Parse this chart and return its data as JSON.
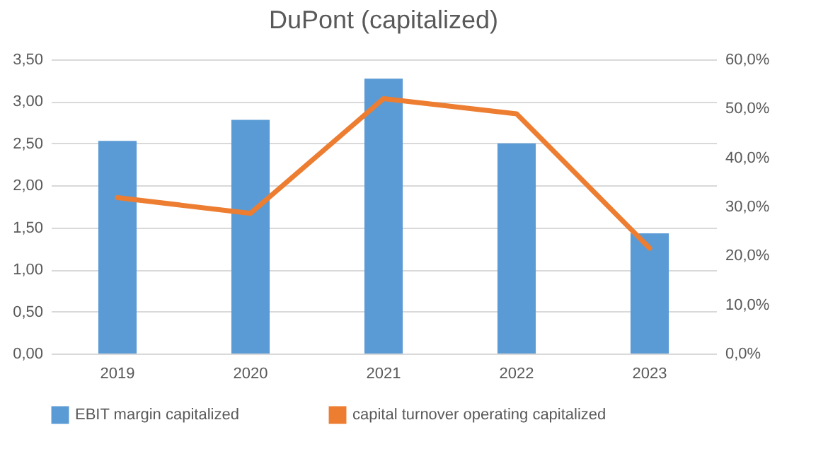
{
  "chart_data": {
    "type": "bar",
    "title": "DuPont (capitalized)",
    "categories": [
      "2019",
      "2020",
      "2021",
      "2022",
      "2023"
    ],
    "series": [
      {
        "name": "EBIT margin capitalized",
        "color": "#5b9bd5",
        "values": [
          2.53,
          2.78,
          3.27,
          2.5,
          1.43
        ]
      },
      {
        "name": "capital turnover operating capitalized",
        "type": "line",
        "axis": "y2",
        "color": "#ed7d31",
        "values": [
          31.8,
          28.6,
          52.0,
          48.9,
          21.5
        ]
      }
    ],
    "ylim": [
      0,
      3.5
    ],
    "yticks": [
      {
        "value": 0,
        "label": "0,00"
      },
      {
        "value": 0.5,
        "label": "0,50"
      },
      {
        "value": 1,
        "label": "1,00"
      },
      {
        "value": 1.5,
        "label": "1,50"
      },
      {
        "value": 2,
        "label": "2,00"
      },
      {
        "value": 2.5,
        "label": "2,50"
      },
      {
        "value": 3,
        "label": "3,00"
      },
      {
        "value": 3.5,
        "label": "3,50"
      }
    ],
    "y2lim": [
      0,
      60
    ],
    "y2ticks": [
      {
        "value": 0,
        "label": "0,0%"
      },
      {
        "value": 10,
        "label": "10,0%"
      },
      {
        "value": 20,
        "label": "20,0%"
      },
      {
        "value": 30,
        "label": "30,0%"
      },
      {
        "value": 40,
        "label": "40,0%"
      },
      {
        "value": 50,
        "label": "50,0%"
      },
      {
        "value": 60,
        "label": "60,0%"
      }
    ],
    "grid": "y",
    "legend": "bottom",
    "marker": "none",
    "line_style": "solid"
  }
}
